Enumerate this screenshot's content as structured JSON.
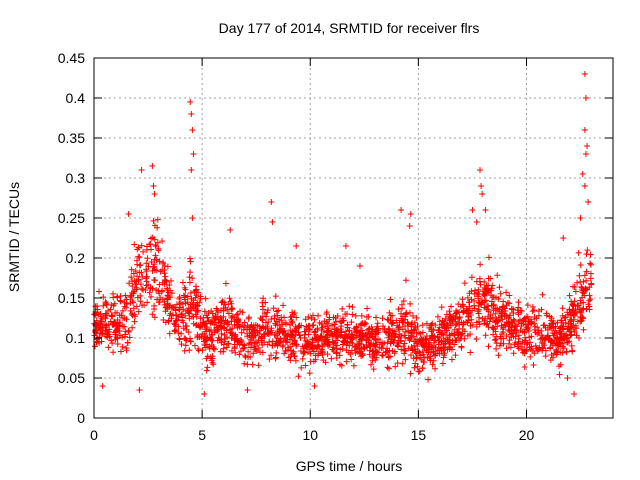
{
  "chart_data": {
    "type": "scatter",
    "title": "Day 177 of 2014, SRMTID for receiver flrs",
    "xlabel": "GPS time / hours",
    "ylabel": "SRMTID / TECUs",
    "xlim": [
      0,
      24
    ],
    "ylim": [
      0,
      0.45
    ],
    "xticks": [
      0,
      5,
      10,
      15,
      20
    ],
    "yticks": [
      0,
      0.05,
      0.1,
      0.15,
      0.2,
      0.25,
      0.3,
      0.35,
      0.4,
      0.45
    ],
    "ytick_labels": [
      "0",
      "0.05",
      "0.1",
      "0.15",
      "0.2",
      "0.25",
      "0.3",
      "0.35",
      "0.4",
      "0.45"
    ],
    "grid": true,
    "marker": "plus",
    "color": "#ff0000",
    "approx_point_count": 2200,
    "envelope": {
      "hours": [
        0,
        0.5,
        1,
        1.5,
        2,
        2.5,
        3,
        3.5,
        4,
        4.5,
        5,
        5.5,
        6,
        6.5,
        7,
        7.5,
        8,
        8.5,
        9,
        9.5,
        10,
        10.5,
        11,
        11.5,
        12,
        12.5,
        13,
        13.5,
        14,
        14.5,
        15,
        15.5,
        16,
        16.5,
        17,
        17.5,
        18,
        18.5,
        19,
        19.5,
        20,
        20.5,
        21,
        21.5,
        22,
        22.5,
        23
      ],
      "median": [
        0.12,
        0.12,
        0.115,
        0.12,
        0.17,
        0.18,
        0.19,
        0.14,
        0.12,
        0.15,
        0.11,
        0.105,
        0.12,
        0.11,
        0.1,
        0.1,
        0.11,
        0.11,
        0.1,
        0.1,
        0.095,
        0.1,
        0.105,
        0.1,
        0.1,
        0.1,
        0.095,
        0.095,
        0.11,
        0.115,
        0.09,
        0.09,
        0.1,
        0.11,
        0.12,
        0.14,
        0.15,
        0.13,
        0.12,
        0.11,
        0.11,
        0.11,
        0.1,
        0.1,
        0.11,
        0.15,
        0.17
      ],
      "spread": [
        0.03,
        0.035,
        0.035,
        0.04,
        0.05,
        0.055,
        0.055,
        0.045,
        0.04,
        0.055,
        0.04,
        0.035,
        0.035,
        0.035,
        0.03,
        0.035,
        0.04,
        0.035,
        0.03,
        0.03,
        0.03,
        0.03,
        0.03,
        0.03,
        0.03,
        0.03,
        0.03,
        0.03,
        0.04,
        0.045,
        0.03,
        0.03,
        0.03,
        0.035,
        0.035,
        0.045,
        0.045,
        0.04,
        0.035,
        0.035,
        0.035,
        0.035,
        0.03,
        0.03,
        0.035,
        0.045,
        0.05
      ]
    },
    "notable_points": [
      {
        "x": 4.45,
        "y": 0.395
      },
      {
        "x": 4.5,
        "y": 0.38
      },
      {
        "x": 4.55,
        "y": 0.36
      },
      {
        "x": 4.6,
        "y": 0.33
      },
      {
        "x": 4.5,
        "y": 0.31
      },
      {
        "x": 4.55,
        "y": 0.25
      },
      {
        "x": 2.2,
        "y": 0.31
      },
      {
        "x": 2.7,
        "y": 0.315
      },
      {
        "x": 2.75,
        "y": 0.29
      },
      {
        "x": 2.8,
        "y": 0.28
      },
      {
        "x": 1.6,
        "y": 0.255
      },
      {
        "x": 8.2,
        "y": 0.27
      },
      {
        "x": 8.25,
        "y": 0.245
      },
      {
        "x": 9.35,
        "y": 0.215
      },
      {
        "x": 6.3,
        "y": 0.235
      },
      {
        "x": 14.2,
        "y": 0.26
      },
      {
        "x": 14.65,
        "y": 0.255
      },
      {
        "x": 14.6,
        "y": 0.24
      },
      {
        "x": 17.5,
        "y": 0.26
      },
      {
        "x": 17.7,
        "y": 0.245
      },
      {
        "x": 17.85,
        "y": 0.31
      },
      {
        "x": 17.9,
        "y": 0.29
      },
      {
        "x": 17.95,
        "y": 0.28
      },
      {
        "x": 18.1,
        "y": 0.26
      },
      {
        "x": 22.7,
        "y": 0.43
      },
      {
        "x": 22.75,
        "y": 0.4
      },
      {
        "x": 22.7,
        "y": 0.36
      },
      {
        "x": 22.8,
        "y": 0.34
      },
      {
        "x": 22.75,
        "y": 0.33
      },
      {
        "x": 22.6,
        "y": 0.305
      },
      {
        "x": 22.7,
        "y": 0.29
      },
      {
        "x": 22.85,
        "y": 0.27
      },
      {
        "x": 22.5,
        "y": 0.25
      },
      {
        "x": 21.7,
        "y": 0.225
      },
      {
        "x": 22.2,
        "y": 0.03
      },
      {
        "x": 5.1,
        "y": 0.03
      },
      {
        "x": 2.1,
        "y": 0.035
      },
      {
        "x": 11.65,
        "y": 0.215
      },
      {
        "x": 12.3,
        "y": 0.19
      },
      {
        "x": 7.1,
        "y": 0.035
      },
      {
        "x": 0.4,
        "y": 0.04
      },
      {
        "x": 10.2,
        "y": 0.04
      },
      {
        "x": 21.9,
        "y": 0.05
      }
    ]
  }
}
